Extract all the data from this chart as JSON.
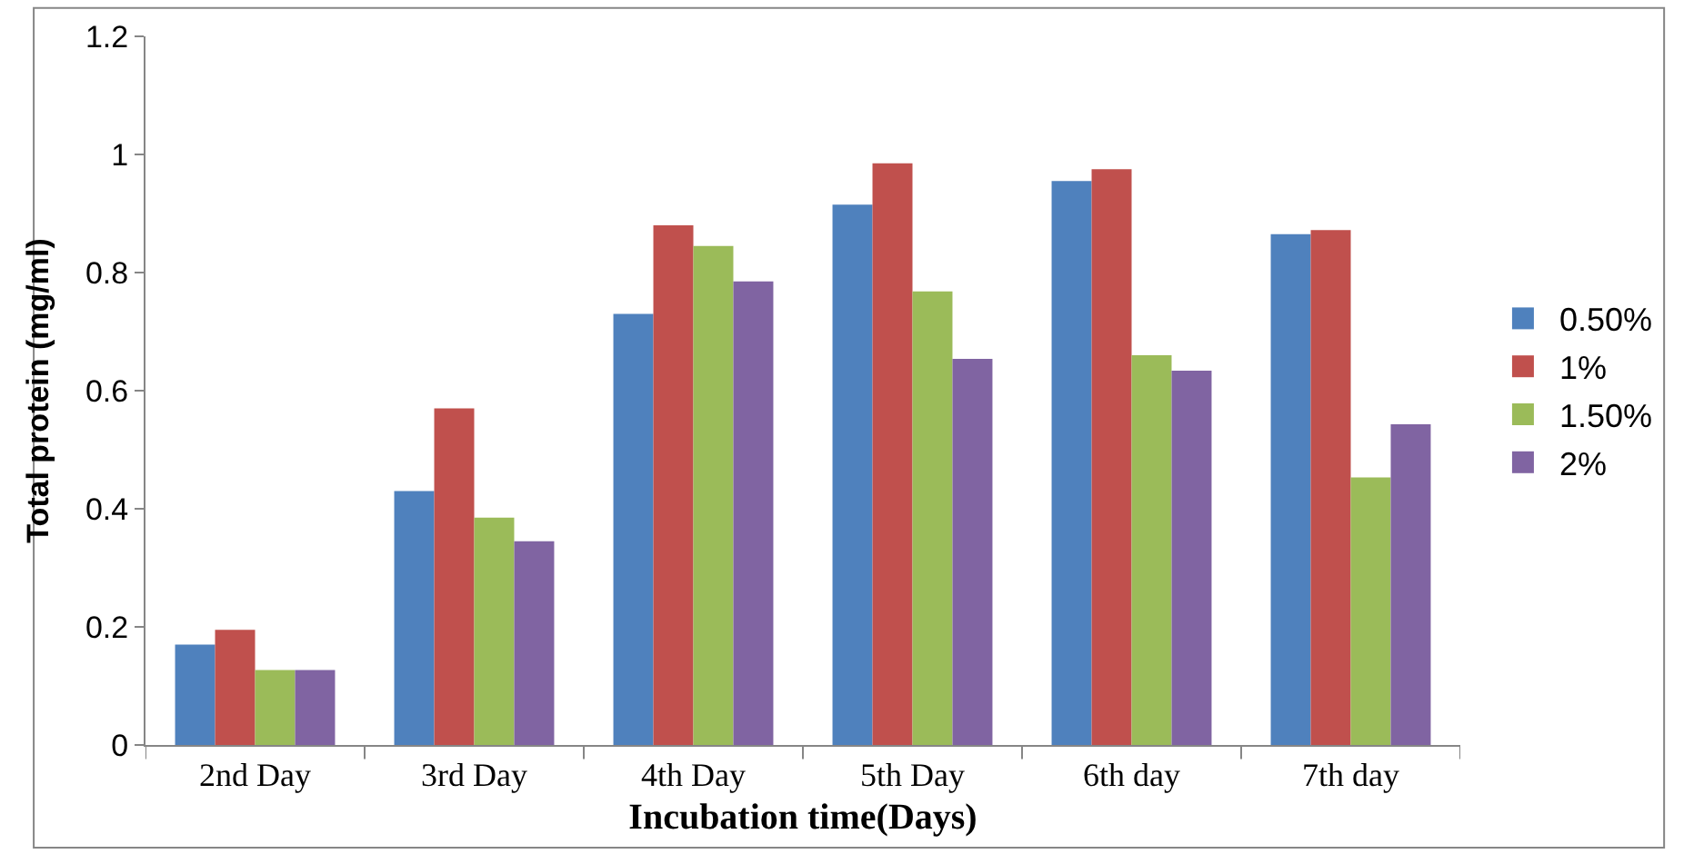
{
  "chart_data": {
    "type": "bar",
    "xlabel": "Incubation time(Days)",
    "ylabel": "Total protein (mg/ml)",
    "categories": [
      "2nd Day",
      "3rd Day",
      "4th Day",
      "5th Day",
      "6th day",
      "7th day"
    ],
    "series": [
      {
        "name": "0.50%",
        "color": "#4f81bd",
        "values": [
          0.17,
          0.43,
          0.73,
          0.915,
          0.955,
          0.865
        ]
      },
      {
        "name": "1%",
        "color": "#c0504d",
        "values": [
          0.195,
          0.57,
          0.88,
          0.985,
          0.975,
          0.872
        ]
      },
      {
        "name": "1.50%",
        "color": "#9bbb59",
        "values": [
          0.127,
          0.385,
          0.845,
          0.768,
          0.66,
          0.453
        ]
      },
      {
        "name": "2%",
        "color": "#8064a2",
        "values": [
          0.127,
          0.345,
          0.785,
          0.654,
          0.634,
          0.543
        ]
      }
    ],
    "ylim": [
      0,
      1.2
    ],
    "yticks": [
      0,
      0.2,
      0.4,
      0.6,
      0.8,
      1,
      1.2
    ],
    "legend": "right"
  }
}
